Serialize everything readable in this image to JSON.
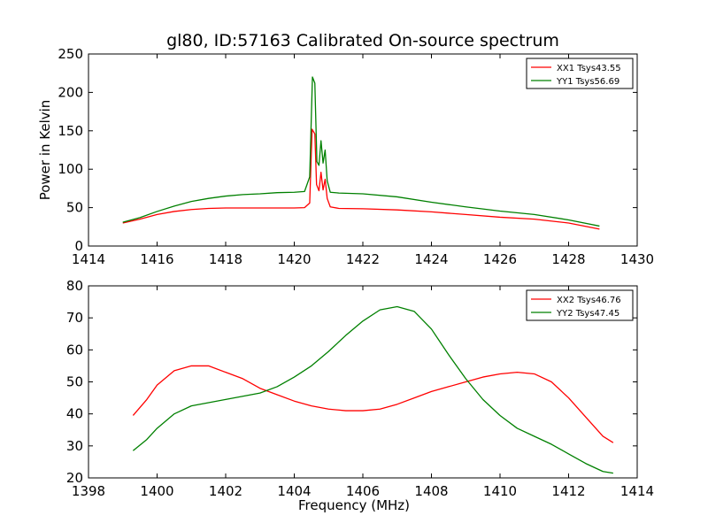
{
  "figure": {
    "title": "gl80, ID:57163 Calibrated On-source spectrum",
    "shared_xlabel": "Frequency (MHz)"
  },
  "chart_data": [
    {
      "type": "line",
      "title": "gl80, ID:57163 Calibrated On-source spectrum",
      "xlabel": "",
      "ylabel": "Power in Kelvin",
      "xlim": [
        1414,
        1430
      ],
      "ylim": [
        0,
        250
      ],
      "xticks": [
        1414,
        1416,
        1418,
        1420,
        1422,
        1424,
        1426,
        1428,
        1430
      ],
      "yticks": [
        0,
        50,
        100,
        150,
        200,
        250
      ],
      "grid": false,
      "legend_position": "top-right",
      "series": [
        {
          "name": "XX1 Tsys43.55",
          "color": "#ff0000",
          "points": [
            [
              1415.0,
              30
            ],
            [
              1415.5,
              35
            ],
            [
              1416.0,
              41
            ],
            [
              1416.5,
              45
            ],
            [
              1417.0,
              47.5
            ],
            [
              1417.5,
              49
            ],
            [
              1418.0,
              49.5
            ],
            [
              1418.5,
              49.5
            ],
            [
              1419.0,
              49.5
            ],
            [
              1419.5,
              49.5
            ],
            [
              1420.0,
              49.5
            ],
            [
              1420.3,
              50
            ],
            [
              1420.45,
              56
            ],
            [
              1420.52,
              152
            ],
            [
              1420.6,
              146
            ],
            [
              1420.65,
              80
            ],
            [
              1420.72,
              72
            ],
            [
              1420.78,
              96
            ],
            [
              1420.84,
              73
            ],
            [
              1420.9,
              87
            ],
            [
              1420.96,
              62
            ],
            [
              1421.05,
              51
            ],
            [
              1421.3,
              49
            ],
            [
              1422.0,
              48.5
            ],
            [
              1423.0,
              47
            ],
            [
              1424.0,
              44.5
            ],
            [
              1425.0,
              41
            ],
            [
              1426.0,
              37.5
            ],
            [
              1427.0,
              35
            ],
            [
              1428.0,
              30
            ],
            [
              1428.9,
              22
            ]
          ]
        },
        {
          "name": "YY1 Tsys56.69",
          "color": "#008000",
          "points": [
            [
              1415.0,
              31
            ],
            [
              1415.5,
              37
            ],
            [
              1416.0,
              45
            ],
            [
              1416.5,
              52
            ],
            [
              1417.0,
              58
            ],
            [
              1417.5,
              62
            ],
            [
              1418.0,
              65
            ],
            [
              1418.5,
              67
            ],
            [
              1419.0,
              68
            ],
            [
              1419.5,
              69.5
            ],
            [
              1420.0,
              70
            ],
            [
              1420.3,
              71
            ],
            [
              1420.45,
              90
            ],
            [
              1420.53,
              220
            ],
            [
              1420.6,
              212
            ],
            [
              1420.66,
              110
            ],
            [
              1420.72,
              105
            ],
            [
              1420.78,
              137
            ],
            [
              1420.84,
              108
            ],
            [
              1420.9,
              125
            ],
            [
              1420.96,
              85
            ],
            [
              1421.05,
              70
            ],
            [
              1421.3,
              69
            ],
            [
              1422.0,
              68
            ],
            [
              1423.0,
              64
            ],
            [
              1424.0,
              57
            ],
            [
              1425.0,
              51
            ],
            [
              1426.0,
              45.5
            ],
            [
              1427.0,
              41
            ],
            [
              1428.0,
              34
            ],
            [
              1428.9,
              26
            ]
          ]
        }
      ]
    },
    {
      "type": "line",
      "title": "",
      "xlabel": "Frequency (MHz)",
      "ylabel": "",
      "xlim": [
        1398,
        1414
      ],
      "ylim": [
        20,
        80
      ],
      "xticks": [
        1398,
        1400,
        1402,
        1404,
        1406,
        1408,
        1410,
        1412,
        1414
      ],
      "yticks": [
        20,
        30,
        40,
        50,
        60,
        70,
        80
      ],
      "grid": false,
      "legend_position": "top-right",
      "series": [
        {
          "name": "XX2 Tsys46.76",
          "color": "#ff0000",
          "points": [
            [
              1399.3,
              39.5
            ],
            [
              1399.7,
              44.5
            ],
            [
              1400.0,
              49
            ],
            [
              1400.5,
              53.5
            ],
            [
              1401.0,
              55
            ],
            [
              1401.5,
              55
            ],
            [
              1402.0,
              53
            ],
            [
              1402.5,
              51
            ],
            [
              1403.0,
              48
            ],
            [
              1403.5,
              46
            ],
            [
              1404.0,
              44
            ],
            [
              1404.5,
              42.5
            ],
            [
              1405.0,
              41.5
            ],
            [
              1405.5,
              41
            ],
            [
              1406.0,
              41
            ],
            [
              1406.5,
              41.5
            ],
            [
              1407.0,
              43
            ],
            [
              1407.5,
              45
            ],
            [
              1408.0,
              47
            ],
            [
              1408.5,
              48.5
            ],
            [
              1409.0,
              50
            ],
            [
              1409.5,
              51.5
            ],
            [
              1410.0,
              52.5
            ],
            [
              1410.5,
              53
            ],
            [
              1411.0,
              52.5
            ],
            [
              1411.5,
              50
            ],
            [
              1412.0,
              45
            ],
            [
              1412.5,
              39
            ],
            [
              1413.0,
              33
            ],
            [
              1413.3,
              31
            ]
          ]
        },
        {
          "name": "YY2 Tsys47.45",
          "color": "#008000",
          "points": [
            [
              1399.3,
              28.5
            ],
            [
              1399.7,
              32
            ],
            [
              1400.0,
              35.5
            ],
            [
              1400.5,
              40
            ],
            [
              1401.0,
              42.5
            ],
            [
              1401.5,
              43.5
            ],
            [
              1402.0,
              44.5
            ],
            [
              1402.5,
              45.5
            ],
            [
              1403.0,
              46.5
            ],
            [
              1403.5,
              48.5
            ],
            [
              1404.0,
              51.5
            ],
            [
              1404.5,
              55
            ],
            [
              1405.0,
              59.5
            ],
            [
              1405.5,
              64.5
            ],
            [
              1406.0,
              69
            ],
            [
              1406.5,
              72.5
            ],
            [
              1407.0,
              73.5
            ],
            [
              1407.5,
              72
            ],
            [
              1408.0,
              66.5
            ],
            [
              1408.5,
              58.5
            ],
            [
              1409.0,
              51
            ],
            [
              1409.5,
              44.5
            ],
            [
              1410.0,
              39.5
            ],
            [
              1410.5,
              35.5
            ],
            [
              1411.0,
              33
            ],
            [
              1411.5,
              30.5
            ],
            [
              1412.0,
              27.5
            ],
            [
              1412.5,
              24.5
            ],
            [
              1413.0,
              22
            ],
            [
              1413.3,
              21.5
            ]
          ]
        }
      ]
    }
  ]
}
